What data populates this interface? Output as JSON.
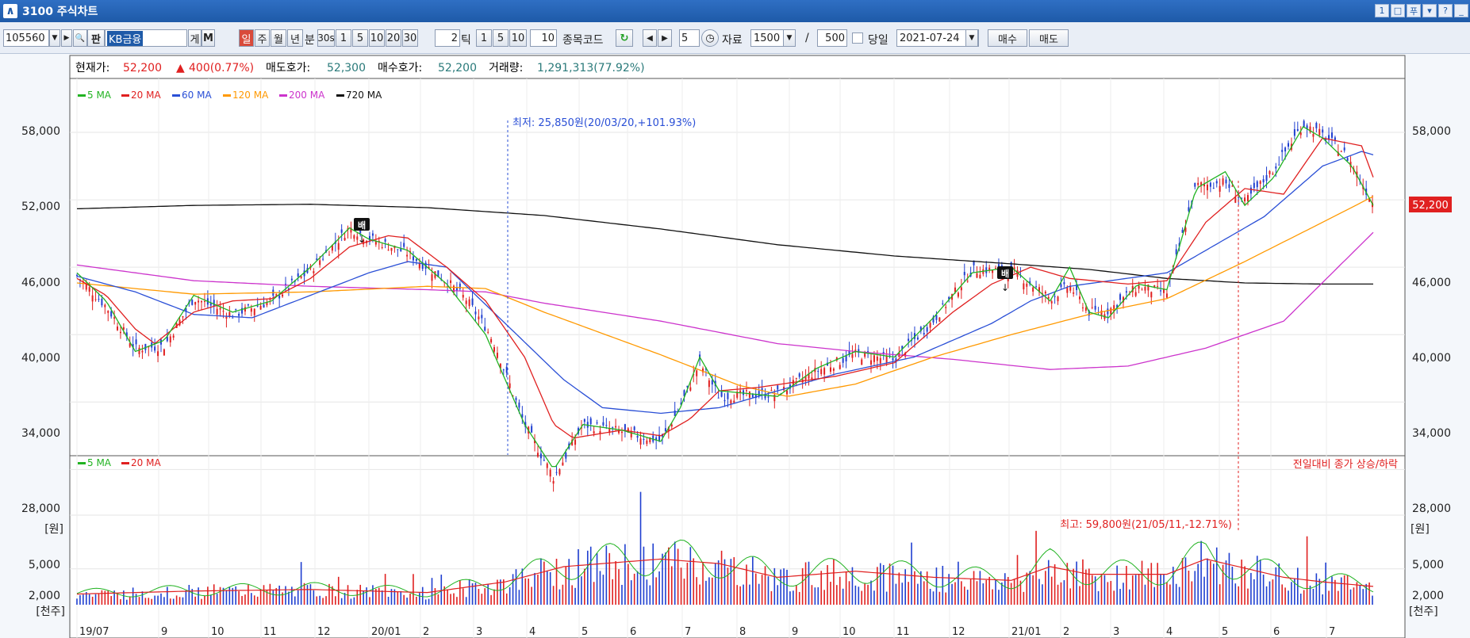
{
  "window": {
    "title": "3100 주식차트",
    "buttons": [
      "1",
      "□",
      "푸",
      "▾",
      "?",
      "_"
    ]
  },
  "toolbar": {
    "stock_code": "105560",
    "stock_name": "KB금융",
    "btn_ge": "게",
    "btn_m": "M",
    "btn_search": "🔍",
    "btn_pan": "판",
    "periods": [
      "일",
      "주",
      "월",
      "년"
    ],
    "period_selected": "일",
    "minute_label": "분",
    "minute_opts": [
      "30s",
      "1",
      "5",
      "10",
      "20",
      "30"
    ],
    "tick_value": "2",
    "tick_label": "틱",
    "tick_opts": [
      "1",
      "5",
      "10"
    ],
    "tick_input": "10",
    "code_label": "종목코드",
    "count_input": "5",
    "data_label": "자료",
    "data_value": "1500",
    "slash": "/",
    "data_total": "500",
    "today_label": "당일",
    "date": "2021-07-24",
    "buy_label": "매수",
    "sell_label": "매도"
  },
  "info": {
    "price_label": "현재가:",
    "price": "52,200",
    "change": "400(0.77%)",
    "ask_label": "매도호가:",
    "ask": "52,300",
    "bid_label": "매수호가:",
    "bid": "52,200",
    "vol_label": "거래량:",
    "vol": "1,291,313(77.92%)"
  },
  "colors": {
    "up": "#e02020",
    "down": "#1f3fd0",
    "ma5": "#22b322",
    "ma20": "#e02020",
    "ma60": "#2a4fd6",
    "ma120": "#ff9900",
    "ma200": "#cc33cc",
    "ma720": "#111111"
  },
  "chart_data": [
    {
      "type": "line",
      "series": [
        {
          "name": "5 MA"
        },
        {
          "name": "20 MA"
        },
        {
          "name": "60 MA"
        },
        {
          "name": "120 MA"
        },
        {
          "name": "200 MA"
        },
        {
          "name": "720 MA"
        }
      ],
      "y_ticks": [
        "58,000",
        "52,000",
        "46,000",
        "40,000",
        "34,000",
        "28,000"
      ],
      "y_unit": "[원]",
      "x_ticks": [
        "19/07",
        "9",
        "10",
        "11",
        "12",
        "20/01",
        "2",
        "3",
        "4",
        "5",
        "6",
        "7",
        "8",
        "9",
        "10",
        "11",
        "12",
        "21/01",
        "2",
        "3",
        "4",
        "5",
        "6",
        "7"
      ],
      "current_price_tag": "52,200",
      "annotations": {
        "low": "최저: 25,850원(20/03/20,+101.93%)",
        "high": "최고: 59,800원(21/05/11,-12.71%)",
        "marker": "배"
      },
      "ma720": [
        [
          0,
          51200
        ],
        [
          60,
          51500
        ],
        [
          120,
          51600
        ],
        [
          180,
          51300
        ],
        [
          240,
          50600
        ],
        [
          300,
          49400
        ],
        [
          360,
          48000
        ],
        [
          420,
          47000
        ],
        [
          480,
          46300
        ],
        [
          520,
          45800
        ],
        [
          560,
          45000
        ],
        [
          600,
          44600
        ],
        [
          640,
          44500
        ],
        [
          666,
          44500
        ]
      ],
      "ma200": [
        [
          0,
          46200
        ],
        [
          60,
          44800
        ],
        [
          120,
          44300
        ],
        [
          180,
          44000
        ],
        [
          210,
          43800
        ],
        [
          240,
          42800
        ],
        [
          300,
          41200
        ],
        [
          360,
          39200
        ],
        [
          400,
          38500
        ],
        [
          450,
          37800
        ],
        [
          500,
          36900
        ],
        [
          540,
          37200
        ],
        [
          580,
          38800
        ],
        [
          620,
          41200
        ],
        [
          666,
          49100
        ]
      ],
      "ma120": [
        [
          0,
          44600
        ],
        [
          60,
          43600
        ],
        [
          120,
          43800
        ],
        [
          180,
          44300
        ],
        [
          210,
          44100
        ],
        [
          240,
          42000
        ],
        [
          300,
          38200
        ],
        [
          340,
          35500
        ],
        [
          365,
          34500
        ],
        [
          400,
          35600
        ],
        [
          440,
          38000
        ],
        [
          480,
          40000
        ],
        [
          520,
          41800
        ],
        [
          560,
          43200
        ],
        [
          600,
          46500
        ],
        [
          640,
          50000
        ],
        [
          666,
          52300
        ]
      ],
      "ma60": [
        [
          0,
          45200
        ],
        [
          30,
          43800
        ],
        [
          60,
          41800
        ],
        [
          90,
          41500
        ],
        [
          120,
          43500
        ],
        [
          150,
          45500
        ],
        [
          170,
          46500
        ],
        [
          190,
          46000
        ],
        [
          220,
          41000
        ],
        [
          250,
          36000
        ],
        [
          270,
          33500
        ],
        [
          300,
          33000
        ],
        [
          330,
          33500
        ],
        [
          360,
          35000
        ],
        [
          390,
          36500
        ],
        [
          430,
          38000
        ],
        [
          470,
          41000
        ],
        [
          490,
          43000
        ],
        [
          510,
          44300
        ],
        [
          560,
          45500
        ],
        [
          610,
          50500
        ],
        [
          640,
          55000
        ],
        [
          660,
          56300
        ],
        [
          666,
          56000
        ]
      ],
      "ma20": [
        [
          0,
          45000
        ],
        [
          15,
          43500
        ],
        [
          30,
          40500
        ],
        [
          40,
          39200
        ],
        [
          60,
          42000
        ],
        [
          80,
          43000
        ],
        [
          100,
          43200
        ],
        [
          120,
          45000
        ],
        [
          140,
          47800
        ],
        [
          160,
          48800
        ],
        [
          170,
          48600
        ],
        [
          190,
          46000
        ],
        [
          210,
          43000
        ],
        [
          230,
          38000
        ],
        [
          245,
          32000
        ],
        [
          255,
          30800
        ],
        [
          280,
          31500
        ],
        [
          300,
          31000
        ],
        [
          315,
          32500
        ],
        [
          330,
          35000
        ],
        [
          350,
          35300
        ],
        [
          370,
          35800
        ],
        [
          390,
          36300
        ],
        [
          420,
          37500
        ],
        [
          450,
          42000
        ],
        [
          470,
          44500
        ],
        [
          490,
          46000
        ],
        [
          510,
          45000
        ],
        [
          540,
          44500
        ],
        [
          560,
          44800
        ],
        [
          580,
          50000
        ],
        [
          600,
          53000
        ],
        [
          620,
          52500
        ],
        [
          640,
          57500
        ],
        [
          660,
          56800
        ],
        [
          666,
          54000
        ]
      ],
      "ma5": [
        [
          0,
          45500
        ],
        [
          15,
          43000
        ],
        [
          30,
          38500
        ],
        [
          45,
          39500
        ],
        [
          60,
          43500
        ],
        [
          80,
          42000
        ],
        [
          100,
          43000
        ],
        [
          120,
          46000
        ],
        [
          140,
          49500
        ],
        [
          150,
          48500
        ],
        [
          170,
          47500
        ],
        [
          190,
          44500
        ],
        [
          210,
          40000
        ],
        [
          230,
          32000
        ],
        [
          245,
          28000
        ],
        [
          260,
          32000
        ],
        [
          280,
          31500
        ],
        [
          300,
          30500
        ],
        [
          310,
          33500
        ],
        [
          320,
          38000
        ],
        [
          330,
          35000
        ],
        [
          360,
          34500
        ],
        [
          380,
          37000
        ],
        [
          400,
          38500
        ],
        [
          420,
          38000
        ],
        [
          440,
          41500
        ],
        [
          460,
          45500
        ],
        [
          480,
          46000
        ],
        [
          490,
          44500
        ],
        [
          500,
          43000
        ],
        [
          510,
          46000
        ],
        [
          520,
          42000
        ],
        [
          530,
          41500
        ],
        [
          545,
          44500
        ],
        [
          560,
          44000
        ],
        [
          575,
          53000
        ],
        [
          590,
          54500
        ],
        [
          600,
          51500
        ],
        [
          615,
          54000
        ],
        [
          630,
          58500
        ],
        [
          640,
          57500
        ],
        [
          655,
          55000
        ],
        [
          666,
          51500
        ]
      ],
      "ohlc_envelope": [
        [
          0,
          45000
        ],
        [
          30,
          39000
        ],
        [
          45,
          38500
        ],
        [
          60,
          43000
        ],
        [
          80,
          41500
        ],
        [
          100,
          43000
        ],
        [
          120,
          45500
        ],
        [
          140,
          49500
        ],
        [
          170,
          47000
        ],
        [
          200,
          44000
        ],
        [
          215,
          40000
        ],
        [
          230,
          32000
        ],
        [
          245,
          26500
        ],
        [
          260,
          32000
        ],
        [
          300,
          30500
        ],
        [
          320,
          37000
        ],
        [
          330,
          34000
        ],
        [
          360,
          35000
        ],
        [
          400,
          38000
        ],
        [
          420,
          37500
        ],
        [
          440,
          41000
        ],
        [
          460,
          46000
        ],
        [
          480,
          45500
        ],
        [
          500,
          43500
        ],
        [
          520,
          42000
        ],
        [
          545,
          44000
        ],
        [
          560,
          43500
        ],
        [
          575,
          53500
        ],
        [
          600,
          52000
        ],
        [
          630,
          59000
        ],
        [
          650,
          57000
        ],
        [
          666,
          51800
        ]
      ]
    },
    {
      "type": "bar",
      "series": [
        {
          "name": "5 MA"
        },
        {
          "name": "20 MA"
        }
      ],
      "y_ticks": [
        "5,000",
        "2,000"
      ],
      "y_unit": "[천주]",
      "legend_note": "전일대비 종가 상승/하락",
      "volume_envelope": [
        [
          0,
          700
        ],
        [
          60,
          900
        ],
        [
          120,
          1000
        ],
        [
          180,
          800
        ],
        [
          220,
          1500
        ],
        [
          250,
          2500
        ],
        [
          280,
          2800
        ],
        [
          300,
          3000
        ],
        [
          330,
          2700
        ],
        [
          360,
          1800
        ],
        [
          400,
          2200
        ],
        [
          440,
          1800
        ],
        [
          480,
          1600
        ],
        [
          500,
          2500
        ],
        [
          520,
          2000
        ],
        [
          560,
          2000
        ],
        [
          580,
          3000
        ],
        [
          620,
          1800
        ],
        [
          640,
          1500
        ],
        [
          666,
          1200
        ]
      ]
    }
  ]
}
